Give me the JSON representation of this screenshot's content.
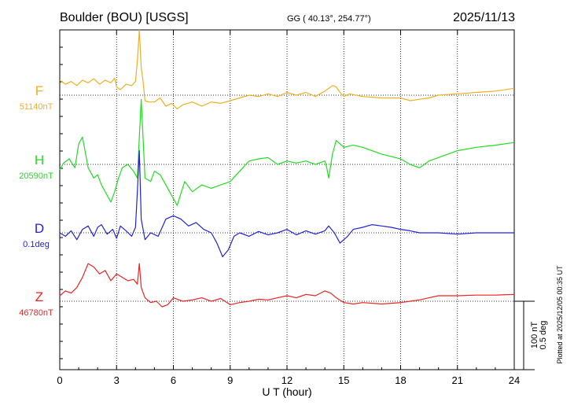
{
  "header": {
    "station": "Boulder (BOU)  [USGS]",
    "coords": "GG ( 40.13°, 254.77°)",
    "date": "2025/11/13"
  },
  "footer": {
    "plotted": "Plotted at 2025/12/05 00:35 UT"
  },
  "scale": {
    "nt": "100 nT",
    "deg": "0.5 deg"
  },
  "chart_data": {
    "type": "line",
    "xlabel": "U T (hour)",
    "xlim": [
      0,
      24
    ],
    "xticks": [
      0,
      3,
      6,
      9,
      12,
      15,
      18,
      21,
      24
    ],
    "grid": true,
    "series": [
      {
        "name": "F",
        "baseline_label": "51140nT",
        "color": "#f0b020",
        "offset": 0,
        "x": [
          0,
          0.3,
          0.6,
          0.9,
          1.2,
          1.5,
          1.8,
          2.1,
          2.4,
          2.7,
          2.9,
          3.0,
          3.2,
          3.5,
          3.8,
          4.0,
          4.1,
          4.2,
          4.3,
          4.4,
          4.5,
          4.7,
          5.0,
          5.3,
          5.6,
          5.9,
          6.2,
          6.5,
          7.0,
          7.5,
          8.0,
          8.5,
          9.0,
          9.5,
          10,
          10.5,
          11,
          11.5,
          12,
          12.5,
          13,
          13.5,
          14,
          14.2,
          14.4,
          14.6,
          14.8,
          15.0,
          15.3,
          16,
          17,
          18,
          18.5,
          19,
          19.5,
          20,
          21,
          22,
          23,
          24
        ],
        "y": [
          22,
          16,
          20,
          14,
          22,
          18,
          24,
          16,
          22,
          18,
          25,
          12,
          8,
          16,
          14,
          20,
          50,
          95,
          40,
          20,
          -8,
          -10,
          -10,
          -4,
          -16,
          -12,
          -20,
          -14,
          -10,
          -16,
          -10,
          -12,
          -8,
          -4,
          0,
          -2,
          2,
          -2,
          4,
          0,
          4,
          -2,
          6,
          10,
          14,
          12,
          4,
          -2,
          2,
          -2,
          -4,
          -4,
          -8,
          -6,
          -4,
          0,
          2,
          4,
          6,
          10
        ]
      },
      {
        "name": "H",
        "baseline_label": "20590nT",
        "color": "#22dd22",
        "offset": 0,
        "x": [
          0,
          0.2,
          0.5,
          0.8,
          1.0,
          1.2,
          1.5,
          1.8,
          2.0,
          2.2,
          2.5,
          2.7,
          2.9,
          3.1,
          3.3,
          3.6,
          3.9,
          4.1,
          4.2,
          4.3,
          4.5,
          4.8,
          5.0,
          5.3,
          5.6,
          5.9,
          6.2,
          6.6,
          7.0,
          7.5,
          8.0,
          8.5,
          9.0,
          9.5,
          10,
          10.5,
          11,
          11.5,
          12,
          12.5,
          13,
          13.5,
          14.0,
          14.1,
          14.2,
          14.4,
          14.6,
          15,
          15.5,
          16,
          17,
          18,
          18.5,
          19,
          19.5,
          20,
          21,
          22,
          23,
          24
        ],
        "y": [
          -8,
          2,
          8,
          -5,
          30,
          40,
          -5,
          -20,
          -15,
          -30,
          -45,
          -55,
          -40,
          -20,
          -5,
          0,
          -10,
          -20,
          40,
          95,
          -20,
          -25,
          -10,
          -15,
          -30,
          -45,
          -60,
          -25,
          -40,
          -30,
          -35,
          -30,
          -25,
          -10,
          5,
          8,
          10,
          0,
          5,
          2,
          5,
          0,
          5,
          -5,
          -20,
          15,
          35,
          25,
          28,
          25,
          15,
          8,
          0,
          -5,
          5,
          10,
          20,
          25,
          28,
          32
        ]
      },
      {
        "name": "D",
        "baseline_label": "0.1deg",
        "color": "#2222dd",
        "offset": 0,
        "x": [
          0,
          0.3,
          0.6,
          0.9,
          1.2,
          1.5,
          1.8,
          2.0,
          2.2,
          2.5,
          2.8,
          3.0,
          3.2,
          3.5,
          3.8,
          4.0,
          4.1,
          4.2,
          4.3,
          4.5,
          4.8,
          5.2,
          5.6,
          6.0,
          6.4,
          6.8,
          7.2,
          7.6,
          8.0,
          8.3,
          8.6,
          8.9,
          9.2,
          9.5,
          10,
          10.5,
          11,
          11.5,
          12,
          12.5,
          13,
          13.5,
          14.0,
          14.2,
          14.5,
          14.8,
          15.0,
          15.2,
          15.5,
          16,
          16.5,
          17,
          17.5,
          18,
          18.5,
          19,
          20,
          21,
          22,
          23,
          24
        ],
        "y": [
          0,
          -5,
          3,
          -10,
          5,
          10,
          -5,
          8,
          12,
          -2,
          5,
          -8,
          10,
          3,
          -5,
          8,
          60,
          120,
          20,
          -10,
          0,
          -5,
          20,
          25,
          20,
          10,
          15,
          5,
          0,
          -15,
          -35,
          -25,
          -5,
          0,
          -5,
          2,
          -3,
          0,
          5,
          -3,
          3,
          -2,
          3,
          10,
          0,
          -15,
          -10,
          -5,
          5,
          8,
          12,
          10,
          8,
          5,
          3,
          0,
          0,
          -2,
          0,
          0,
          0
        ]
      },
      {
        "name": "Z",
        "baseline_label": "46780nT",
        "color": "#ee2222",
        "offset": 0,
        "x": [
          0,
          0.3,
          0.6,
          0.9,
          1.2,
          1.5,
          1.8,
          2.1,
          2.4,
          2.7,
          3.0,
          3.3,
          3.6,
          3.9,
          4.1,
          4.2,
          4.3,
          4.5,
          4.8,
          5.1,
          5.4,
          5.7,
          6.0,
          6.5,
          7.0,
          7.5,
          8.0,
          8.5,
          9.0,
          9.5,
          10,
          10.5,
          11,
          11.5,
          12,
          12.5,
          13,
          13.5,
          14.0,
          14.3,
          14.6,
          15.0,
          15.5,
          16,
          17,
          18,
          18.5,
          19,
          19.5,
          20,
          21,
          22,
          23,
          24
        ],
        "y": [
          8,
          15,
          12,
          20,
          35,
          55,
          50,
          40,
          45,
          30,
          40,
          35,
          30,
          32,
          25,
          55,
          20,
          5,
          -2,
          0,
          -8,
          -5,
          5,
          0,
          2,
          5,
          0,
          4,
          -5,
          -2,
          0,
          3,
          2,
          5,
          8,
          5,
          10,
          8,
          15,
          12,
          5,
          -2,
          -4,
          -2,
          -4,
          -2,
          0,
          2,
          5,
          8,
          8,
          9,
          9,
          10
        ]
      }
    ]
  }
}
